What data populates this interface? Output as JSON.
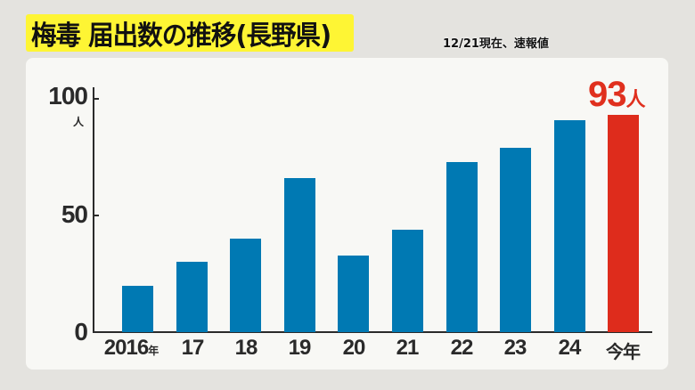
{
  "header": {
    "title": "梅毒 届出数の推移(長野県)",
    "subtitle": "12/21現在、速報値"
  },
  "colors": {
    "title_bg": "#fef534",
    "bar": "#0079b3",
    "highlight_bar": "#de2c1c",
    "highlight_text": "#e0301e",
    "panel_bg": "#f8f8f5",
    "page_bg": "#e4e3df"
  },
  "callout": {
    "value": "93",
    "unit": "人"
  },
  "y_axis": {
    "unit": "人",
    "ticks": [
      "0",
      "50",
      "100"
    ]
  },
  "x_axis": {
    "labels": [
      "2016",
      "17",
      "18",
      "19",
      "20",
      "21",
      "22",
      "23",
      "24",
      "今年"
    ],
    "first_suffix": "年"
  },
  "chart_data": {
    "type": "bar",
    "title": "梅毒 届出数の推移(長野県)",
    "subtitle": "12/21現在、速報値",
    "categories": [
      "2016年",
      "17",
      "18",
      "19",
      "20",
      "21",
      "22",
      "23",
      "24",
      "今年"
    ],
    "values": [
      20,
      30,
      40,
      66,
      33,
      44,
      73,
      79,
      91,
      93
    ],
    "xlabel": "",
    "ylabel": "人",
    "ylim": [
      0,
      100
    ],
    "yticks": [
      0,
      50,
      100
    ],
    "grid": false,
    "legend": null,
    "highlight": {
      "category": "今年",
      "value": 93,
      "label": "93人",
      "color": "#de2c1c"
    },
    "bar_color": "#0079b3"
  }
}
